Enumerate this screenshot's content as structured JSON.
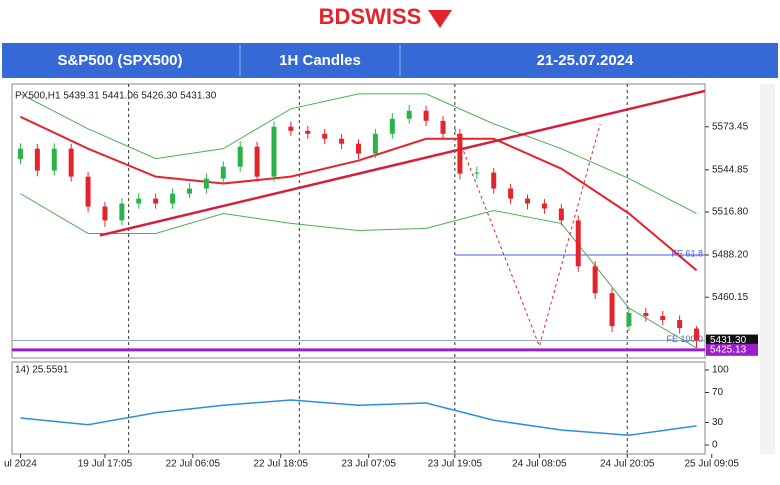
{
  "header": {
    "logo": "BDSWISS",
    "instrument": "S&P500 (SPX500)",
    "timeframe": "1H Candles",
    "dates": "21-25.07.2024"
  },
  "chart_data": {
    "type": "candlestick",
    "info": "PX500,H1  5439.31 5441.06 5426.30 5431.30",
    "open": [
      5552.0,
      5558.9,
      5544.3,
      5558.9,
      5540.3,
      5520.4,
      5511.2,
      5522.4,
      5525.7,
      5522.4,
      5529.0,
      5532.4,
      5539.0,
      5546.9,
      5560.2,
      5540.3,
      5573.5,
      5570.8,
      5568.8,
      5565.5,
      5562.2,
      5555.6,
      5568.8,
      5578.8,
      5584.1,
      5577.4,
      5568.8,
      5542.3,
      5543.0,
      5532.4,
      5525.7,
      5522.4,
      5519.1,
      5511.2,
      5480.7,
      5462.8,
      5440.9,
      5449.6,
      5447.6,
      5444.9,
      5439.31
    ],
    "high": [
      5562.5,
      5562.0,
      5562.5,
      5562.0,
      5543.5,
      5523.5,
      5526.0,
      5529.5,
      5529.0,
      5532.5,
      5536.0,
      5542.5,
      5550.5,
      5564.0,
      5563.5,
      5577.0,
      5577.0,
      5574.0,
      5572.0,
      5568.5,
      5565.0,
      5572.0,
      5582.5,
      5588.0,
      5587.5,
      5580.5,
      5572.0,
      5547.0,
      5546.0,
      5535.5,
      5528.5,
      5525.5,
      5522.0,
      5514.5,
      5484.0,
      5466.0,
      5452.5,
      5453.0,
      5451.0,
      5448.0,
      5441.06
    ],
    "low": [
      5548.5,
      5540.5,
      5541.0,
      5537.0,
      5516.5,
      5507.0,
      5508.0,
      5519.0,
      5519.0,
      5519.0,
      5526.0,
      5529.0,
      5535.5,
      5543.5,
      5537.0,
      5537.0,
      5567.5,
      5565.5,
      5562.0,
      5558.5,
      5552.0,
      5552.5,
      5565.5,
      5575.5,
      5574.0,
      5565.5,
      5538.5,
      5538.5,
      5529.0,
      5522.0,
      5518.5,
      5515.5,
      5508.0,
      5477.0,
      5459.0,
      5437.0,
      5437.5,
      5444.0,
      5441.5,
      5436.0,
      5426.3
    ],
    "close": [
      5558.9,
      5544.3,
      5558.9,
      5540.3,
      5520.4,
      5511.2,
      5522.4,
      5525.7,
      5522.4,
      5529.0,
      5532.4,
      5539.0,
      5546.9,
      5560.2,
      5540.3,
      5573.5,
      5570.8,
      5568.8,
      5565.5,
      5562.2,
      5555.6,
      5568.8,
      5578.8,
      5584.1,
      5577.4,
      5568.8,
      5542.3,
      5543.0,
      5532.4,
      5525.7,
      5522.4,
      5519.1,
      5511.2,
      5480.7,
      5462.8,
      5440.9,
      5449.6,
      5447.6,
      5444.9,
      5439.6,
      5431.3
    ],
    "up_color": "#2bb34a",
    "down_color": "#e3242b",
    "xlim": [
      -0.5,
      40.5
    ],
    "xticks": [
      {
        "value": 0,
        "label": "ul 2024"
      },
      {
        "value": 5.0,
        "label": "19 Jul 17:05"
      },
      {
        "value": 10.2,
        "label": "22 Jul 06:05"
      },
      {
        "value": 15.4,
        "label": "22 Jul 18:05"
      },
      {
        "value": 20.6,
        "label": "23 Jul 07:05"
      },
      {
        "value": 25.7,
        "label": "23 Jul 19:05"
      },
      {
        "value": 30.7,
        "label": "24 Jul 08:05"
      },
      {
        "value": 35.9,
        "label": "24 Jul 20:05"
      },
      {
        "value": 40.9,
        "label": "25 Jul 09:05"
      }
    ],
    "separators": [
      6.4,
      16.5,
      25.7,
      35.9
    ],
    "ylim": [
      5419.7,
      5601.9
    ],
    "yticks": [
      5573.45,
      5544.85,
      {
        "value": 5516.8,
        "label": "5516.80"
      },
      {
        "value": 5488.2,
        "label": "5488.20"
      },
      5460.15
    ],
    "indicators": [
      {
        "x": [
          0,
          4,
          8,
          12,
          16,
          20,
          24,
          28,
          32,
          36,
          40
        ],
        "values": [
          5580.1,
          5558.9,
          5540.3,
          5535.7,
          5540.3,
          5551.0,
          5565.5,
          5565.5,
          5545.6,
          5515.8,
          5478.0
        ],
        "color": "#e3242b",
        "width": 2
      },
      {
        "x": [
          0,
          4,
          8,
          12,
          16,
          20,
          24,
          28,
          32,
          36,
          40
        ],
        "values": [
          5595.3,
          5572.1,
          5552.3,
          5558.9,
          5585.4,
          5595.3,
          5595.3,
          5575.4,
          5558.9,
          5539.0,
          5515.8
        ],
        "color": "#4caf50",
        "width": 1
      },
      {
        "x": [
          0,
          4,
          8,
          12,
          16,
          20,
          24,
          28,
          32,
          36,
          40
        ],
        "values": [
          5529.0,
          5502.5,
          5502.5,
          5515.8,
          5509.2,
          5504.5,
          5505.9,
          5517.8,
          5509.2,
          5452.9,
          5426.4
        ],
        "color": "#4caf50",
        "width": 1
      }
    ],
    "trendline": {
      "x": [
        4.7,
        40.5
      ],
      "values": [
        5501.2,
        5597.3
      ],
      "color": "#d4203a"
    },
    "projection": {
      "x": [
        25.7,
        30.7,
        34.3
      ],
      "values": [
        5572.1,
        5427.7,
        5575.4
      ],
      "color": "#e3242b"
    },
    "levels": [
      {
        "value": 5488.2,
        "from": 25.7,
        "label": "FE 61.8",
        "color": "#4a5ae8"
      },
      {
        "value": 5431.3,
        "from": -0.5,
        "label": "FE 100.0",
        "color": "#9aa"
      }
    ],
    "price_boxes": [
      {
        "value": 5431.3,
        "label": "5431.30",
        "color": "#111"
      },
      {
        "value": 5425.13,
        "label": "5425.13",
        "color": "#9b1fc9"
      }
    ],
    "rsi": {
      "label": "14) 25.5591",
      "x": [
        0,
        4,
        8,
        12,
        16,
        20,
        24,
        28,
        32,
        36,
        40
      ],
      "values": [
        36,
        27,
        43,
        53,
        60,
        53,
        56,
        33,
        20,
        13,
        25.5591
      ],
      "color": "#2b8fe0",
      "ylim": [
        0,
        100
      ],
      "yticks": [
        100,
        70,
        30,
        0
      ]
    }
  }
}
